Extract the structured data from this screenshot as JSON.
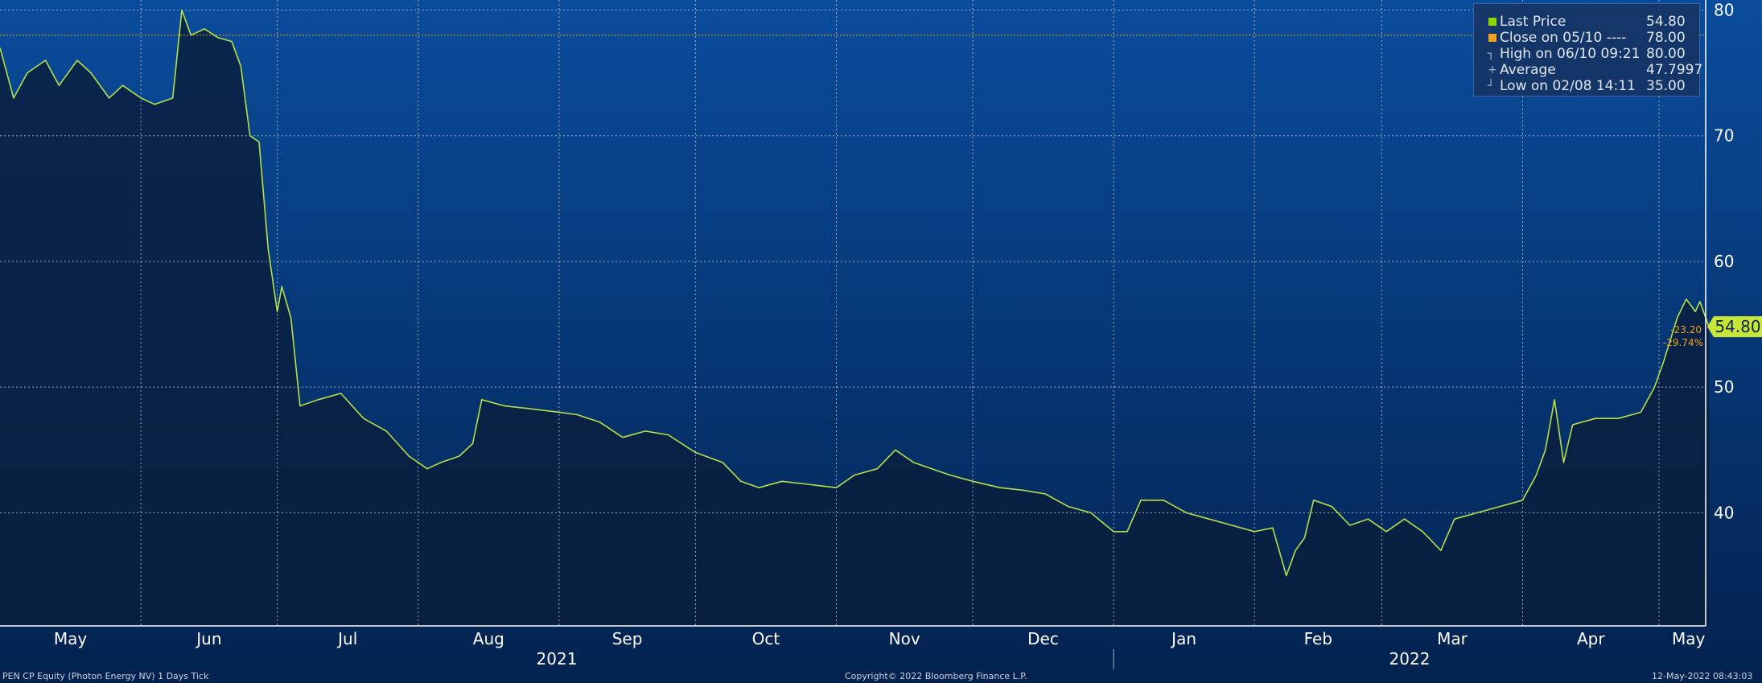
{
  "colors": {
    "background_top": "#0a4c9c",
    "background_bottom": "#03224f",
    "area_fill": "#0a1e3c",
    "price_line": "#b5e04a",
    "close_line": "#f0a020",
    "grid": "#c8d3e3",
    "last_price_marker": "#8fd400",
    "close_marker": "#f0a020",
    "last_badge": "#c8e637"
  },
  "legend": [
    {
      "marker": "square",
      "color": "#8fd400",
      "label": "Last Price",
      "value": "54.80"
    },
    {
      "marker": "square",
      "color": "#f0a020",
      "label": "Close on 05/10 ----",
      "value": "78.00"
    },
    {
      "marker": "high-icon",
      "label": "High on 06/10 09:21",
      "value": "80.00"
    },
    {
      "marker": "average-icon",
      "label": "Average",
      "value": "47.7997"
    },
    {
      "marker": "low-icon",
      "label": "Low on 02/08 14:11",
      "value": "35.00"
    }
  ],
  "chart_data": {
    "type": "line",
    "ylim": [
      31,
      80.8
    ],
    "yticks": [
      40,
      50,
      60,
      70,
      80
    ],
    "ytick_labels": [
      "40",
      "50",
      "60",
      "70",
      "80"
    ],
    "month_labels": [
      "May",
      "Jun",
      "Jul",
      "Aug",
      "Sep",
      "Oct",
      "Nov",
      "Dec",
      "Jan",
      "Feb",
      "Mar",
      "Apr",
      "May"
    ],
    "year_labels": [
      "2021",
      "2022"
    ],
    "grid": true,
    "reference_close": 78.0,
    "last_price": "54.80",
    "change": "-23.20",
    "change_pct": "-29.74%",
    "series": [
      {
        "name": "Last Price",
        "points": [
          [
            "2021-05-01",
            77.0
          ],
          [
            "2021-05-04",
            73.0
          ],
          [
            "2021-05-07",
            75.0
          ],
          [
            "2021-05-11",
            76.0
          ],
          [
            "2021-05-14",
            74.0
          ],
          [
            "2021-05-18",
            76.0
          ],
          [
            "2021-05-21",
            75.0
          ],
          [
            "2021-05-25",
            73.0
          ],
          [
            "2021-05-28",
            74.0
          ],
          [
            "2021-06-01",
            73.0
          ],
          [
            "2021-06-04",
            72.5
          ],
          [
            "2021-06-08",
            73.0
          ],
          [
            "2021-06-10",
            80.0
          ],
          [
            "2021-06-12",
            78.0
          ],
          [
            "2021-06-15",
            78.5
          ],
          [
            "2021-06-18",
            77.8
          ],
          [
            "2021-06-21",
            77.5
          ],
          [
            "2021-06-23",
            75.5
          ],
          [
            "2021-06-25",
            70.0
          ],
          [
            "2021-06-27",
            69.5
          ],
          [
            "2021-06-29",
            61.0
          ],
          [
            "2021-07-01",
            56.0
          ],
          [
            "2021-07-02",
            58.0
          ],
          [
            "2021-07-04",
            55.5
          ],
          [
            "2021-07-06",
            48.5
          ],
          [
            "2021-07-10",
            49.0
          ],
          [
            "2021-07-15",
            49.5
          ],
          [
            "2021-07-20",
            47.5
          ],
          [
            "2021-07-25",
            46.5
          ],
          [
            "2021-07-30",
            44.5
          ],
          [
            "2021-08-03",
            43.5
          ],
          [
            "2021-08-06",
            44.0
          ],
          [
            "2021-08-10",
            44.5
          ],
          [
            "2021-08-13",
            45.5
          ],
          [
            "2021-08-15",
            49.0
          ],
          [
            "2021-08-20",
            48.5
          ],
          [
            "2021-08-25",
            48.3
          ],
          [
            "2021-09-01",
            48.0
          ],
          [
            "2021-09-05",
            47.8
          ],
          [
            "2021-09-10",
            47.2
          ],
          [
            "2021-09-15",
            46.0
          ],
          [
            "2021-09-20",
            46.5
          ],
          [
            "2021-09-25",
            46.2
          ],
          [
            "2021-10-01",
            44.8
          ],
          [
            "2021-10-07",
            44.0
          ],
          [
            "2021-10-11",
            42.5
          ],
          [
            "2021-10-15",
            42.0
          ],
          [
            "2021-10-20",
            42.5
          ],
          [
            "2021-10-25",
            42.3
          ],
          [
            "2021-11-01",
            42.0
          ],
          [
            "2021-11-05",
            43.0
          ],
          [
            "2021-11-10",
            43.5
          ],
          [
            "2021-11-14",
            45.0
          ],
          [
            "2021-11-18",
            44.0
          ],
          [
            "2021-11-22",
            43.5
          ],
          [
            "2021-11-26",
            43.0
          ],
          [
            "2021-12-01",
            42.5
          ],
          [
            "2021-12-07",
            42.0
          ],
          [
            "2021-12-12",
            41.8
          ],
          [
            "2021-12-17",
            41.5
          ],
          [
            "2021-12-22",
            40.5
          ],
          [
            "2021-12-27",
            40.0
          ],
          [
            "2022-01-01",
            38.5
          ],
          [
            "2022-01-04",
            38.5
          ],
          [
            "2022-01-07",
            41.0
          ],
          [
            "2022-01-12",
            41.0
          ],
          [
            "2022-01-17",
            40.0
          ],
          [
            "2022-01-22",
            39.5
          ],
          [
            "2022-01-27",
            39.0
          ],
          [
            "2022-02-01",
            38.5
          ],
          [
            "2022-02-05",
            38.8
          ],
          [
            "2022-02-08",
            35.0
          ],
          [
            "2022-02-10",
            37.0
          ],
          [
            "2022-02-12",
            38.0
          ],
          [
            "2022-02-14",
            41.0
          ],
          [
            "2022-02-18",
            40.5
          ],
          [
            "2022-02-22",
            39.0
          ],
          [
            "2022-02-26",
            39.5
          ],
          [
            "2022-03-02",
            38.5
          ],
          [
            "2022-03-06",
            39.5
          ],
          [
            "2022-03-10",
            38.5
          ],
          [
            "2022-03-14",
            37.0
          ],
          [
            "2022-03-17",
            39.5
          ],
          [
            "2022-03-22",
            40.0
          ],
          [
            "2022-03-27",
            40.5
          ],
          [
            "2022-04-01",
            41.0
          ],
          [
            "2022-04-04",
            43.0
          ],
          [
            "2022-04-06",
            45.0
          ],
          [
            "2022-04-08",
            49.0
          ],
          [
            "2022-04-10",
            44.0
          ],
          [
            "2022-04-12",
            47.0
          ],
          [
            "2022-04-17",
            47.5
          ],
          [
            "2022-04-22",
            47.5
          ],
          [
            "2022-04-27",
            48.0
          ],
          [
            "2022-04-30",
            50.0
          ],
          [
            "2022-05-02",
            52.0
          ],
          [
            "2022-05-05",
            55.5
          ],
          [
            "2022-05-07",
            57.0
          ],
          [
            "2022-05-09",
            56.0
          ],
          [
            "2022-05-10",
            56.8
          ],
          [
            "2022-05-12",
            54.8
          ]
        ]
      }
    ]
  },
  "footer": {
    "left": "PEN CP Equity (Photon Energy NV) 1 Days  Tick",
    "center": "Copyright© 2022 Bloomberg Finance L.P.",
    "right": "12-May-2022 08:43:03"
  }
}
